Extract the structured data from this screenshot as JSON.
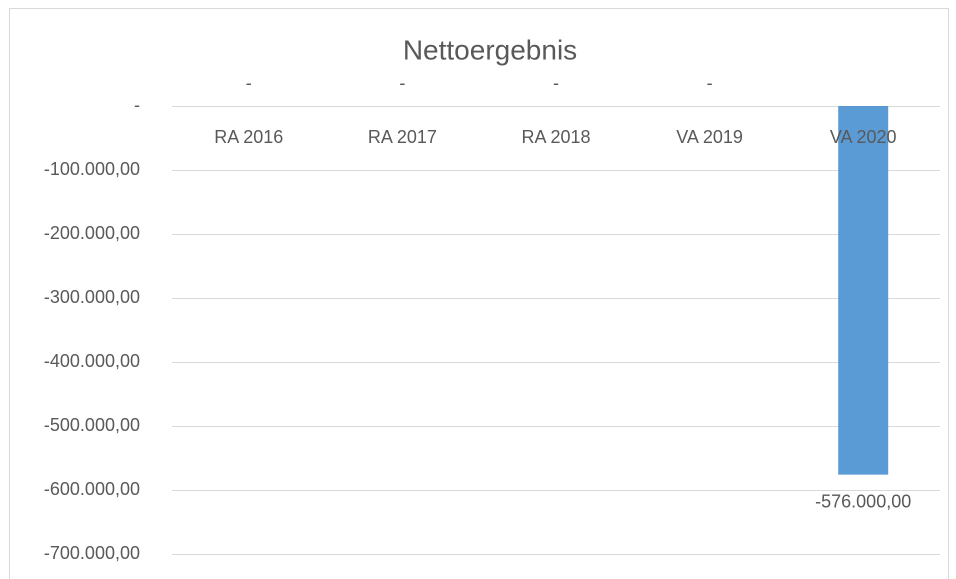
{
  "chart_data": {
    "type": "bar",
    "title": "Nettoergebnis",
    "categories": [
      "RA 2016",
      "RA 2017",
      "RA 2018",
      "VA 2019",
      "VA 2020"
    ],
    "values": [
      0,
      0,
      0,
      0,
      -576000
    ],
    "value_labels": [
      "-",
      "-",
      "-",
      "-",
      "-576.000,00"
    ],
    "color": "#5b9bd5",
    "ylim": [
      -700000,
      0
    ],
    "yticks": [
      {
        "value": 0,
        "label": "-"
      },
      {
        "value": -100000,
        "label": "-100.000,00"
      },
      {
        "value": -200000,
        "label": "-200.000,00"
      },
      {
        "value": -300000,
        "label": "-300.000,00"
      },
      {
        "value": -400000,
        "label": "-400.000,00"
      },
      {
        "value": -500000,
        "label": "-500.000,00"
      },
      {
        "value": -600000,
        "label": "-600.000,00"
      },
      {
        "value": -700000,
        "label": "-700.000,00"
      }
    ],
    "grid": true
  }
}
